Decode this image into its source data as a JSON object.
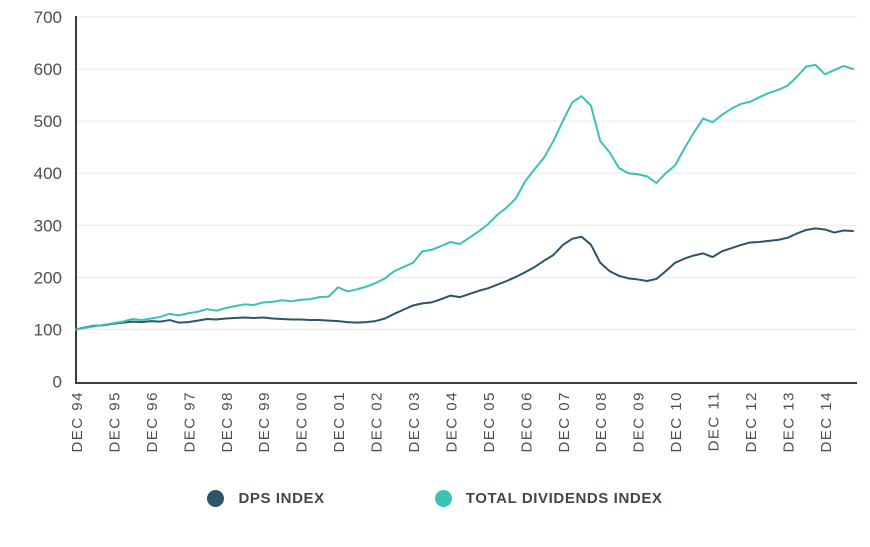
{
  "chart_data": {
    "type": "line",
    "title": "",
    "xlabel": "",
    "ylabel": "",
    "ylim": [
      0,
      700
    ],
    "y_ticks": [
      0,
      100,
      200,
      300,
      400,
      500,
      600,
      700
    ],
    "x_tick_labels": [
      "DEC 94",
      "DEC 95",
      "DEC 96",
      "DEC 97",
      "DEC 98",
      "DEC 99",
      "DEC 00",
      "DEC 01",
      "DEC 02",
      "DEC 03",
      "DEC 04",
      "DEC 05",
      "DEC 06",
      "DEC 07",
      "DEC 08",
      "DEC 09",
      "DEC 10",
      "DEC 11",
      "DEC 12",
      "DEC 13",
      "DEC 14"
    ],
    "x_ticks_every_points": 4,
    "points_per_year": 4,
    "grid": true,
    "legend_position": "bottom",
    "colors": {
      "grid": "#e8e8e8",
      "axis": "#3c3c3c",
      "tick_label": "#4e4e4e",
      "legend_text": "#3e4750",
      "background": "#ffffff"
    },
    "series": [
      {
        "name": "DPS INDEX",
        "color": "#2d5468",
        "values": [
          100,
          104,
          107,
          108,
          111,
          113,
          115,
          114,
          116,
          115,
          118,
          113,
          114,
          117,
          120,
          119,
          121,
          122,
          123,
          122,
          123,
          121,
          120,
          119,
          119,
          118,
          118,
          117,
          116,
          114,
          113,
          114,
          116,
          121,
          130,
          138,
          146,
          150,
          152,
          158,
          165,
          162,
          168,
          174,
          179,
          186,
          193,
          201,
          210,
          220,
          232,
          243,
          262,
          274,
          278,
          263,
          228,
          212,
          203,
          198,
          196,
          193,
          197,
          212,
          228,
          236,
          242,
          246,
          239,
          250,
          256,
          262,
          267,
          268,
          270,
          272,
          276,
          284,
          291,
          294,
          292,
          286,
          290,
          289
        ]
      },
      {
        "name": "TOTAL DIVIDENDS INDEX",
        "color": "#3cc1b7",
        "values": [
          100,
          103,
          106,
          109,
          112,
          115,
          120,
          118,
          121,
          124,
          130,
          127,
          131,
          134,
          139,
          136,
          141,
          145,
          148,
          147,
          152,
          153,
          156,
          154,
          157,
          158,
          162,
          163,
          181,
          173,
          177,
          182,
          189,
          198,
          212,
          220,
          228,
          250,
          253,
          260,
          268,
          264,
          276,
          288,
          302,
          320,
          334,
          352,
          385,
          408,
          430,
          462,
          500,
          536,
          548,
          530,
          462,
          440,
          410,
          400,
          398,
          394,
          381,
          400,
          415,
          448,
          478,
          505,
          498,
          512,
          524,
          533,
          537,
          546,
          554,
          560,
          568,
          585,
          605,
          608,
          590,
          598,
          606,
          600
        ]
      }
    ]
  }
}
